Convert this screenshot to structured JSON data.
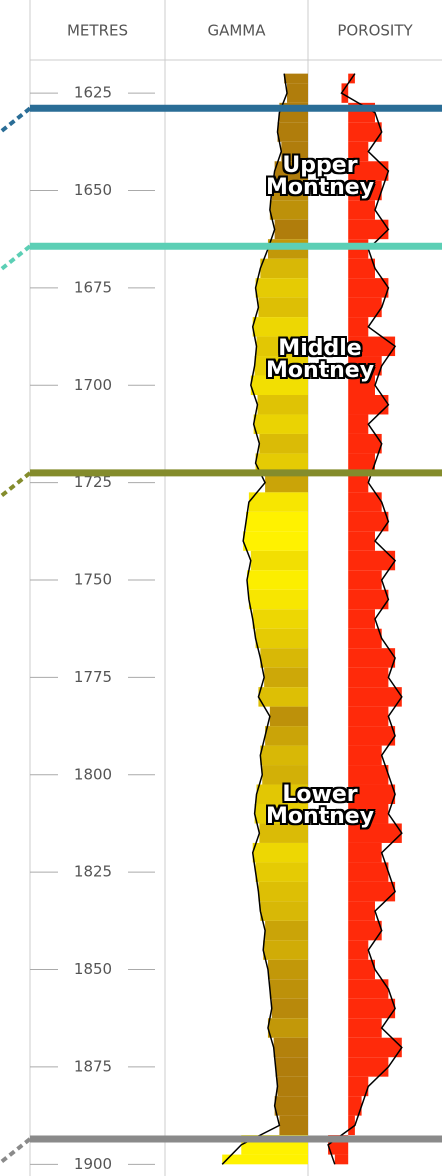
{
  "chart_data": {
    "type": "well-log",
    "depth_label": "METRES",
    "ylim": [
      1616.5,
      1903
    ],
    "yticks": [
      1625,
      1650,
      1675,
      1700,
      1725,
      1750,
      1775,
      1800,
      1825,
      1850,
      1875,
      1900
    ],
    "depth": [
      1620,
      1625,
      1630,
      1635,
      1640,
      1645,
      1650,
      1655,
      1660,
      1665,
      1670,
      1675,
      1680,
      1685,
      1690,
      1695,
      1700,
      1705,
      1710,
      1715,
      1720,
      1725,
      1730,
      1735,
      1740,
      1745,
      1750,
      1755,
      1760,
      1765,
      1770,
      1775,
      1780,
      1785,
      1790,
      1795,
      1800,
      1805,
      1810,
      1815,
      1820,
      1825,
      1830,
      1835,
      1840,
      1845,
      1850,
      1855,
      1860,
      1865,
      1870,
      1875,
      1880,
      1885,
      1890,
      1895,
      1900
    ],
    "series": [
      {
        "name": "GAMMA",
        "xlim": [
          0,
          150
        ],
        "colors": [
          "#fff200",
          "#b07d0c"
        ],
        "values": [
          125,
          128,
          120,
          118,
          122,
          115,
          112,
          110,
          115,
          108,
          100,
          95,
          98,
          92,
          96,
          94,
          90,
          97,
          93,
          99,
          95,
          105,
          88,
          85,
          82,
          90,
          86,
          88,
          92,
          95,
          100,
          104,
          98,
          110,
          105,
          100,
          102,
          96,
          94,
          99,
          92,
          95,
          98,
          100,
          105,
          103,
          108,
          110,
          112,
          108,
          114,
          116,
          118,
          115,
          120,
          80,
          60
        ]
      },
      {
        "name": "POROSITY",
        "xlim": [
          -6,
          14
        ],
        "color": "#ff2a0a",
        "values": [
          1,
          -1,
          4,
          5,
          3,
          6,
          5,
          4,
          6,
          3,
          4,
          6,
          5,
          3,
          7,
          5,
          4,
          6,
          3,
          5,
          4,
          3,
          5,
          6,
          4,
          7,
          5,
          6,
          4,
          5,
          7,
          6,
          8,
          6,
          7,
          5,
          6,
          7,
          6,
          8,
          5,
          6,
          7,
          4,
          5,
          3,
          4,
          6,
          7,
          5,
          8,
          6,
          3,
          2,
          1,
          -3,
          -2
        ]
      }
    ],
    "tops": [
      {
        "depth": 1628.9,
        "color": "#2a6d96"
      },
      {
        "depth": 1664.3,
        "color": "#5ccfb5"
      },
      {
        "depth": 1722.5,
        "color": "#848c2c"
      },
      {
        "depth": 1893.5,
        "color": "#8a8a8a"
      }
    ],
    "zones": [
      "Upper Montney",
      "Middle Montney",
      "Lower Montney"
    ]
  }
}
